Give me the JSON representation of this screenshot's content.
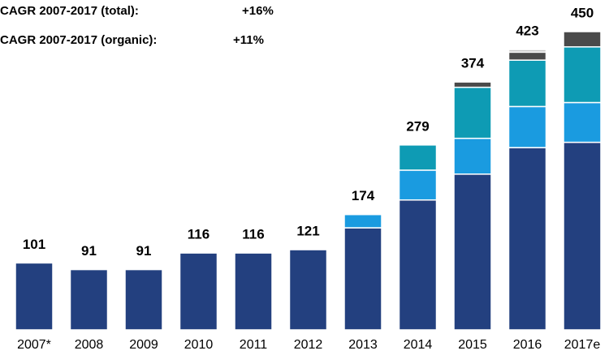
{
  "chart_data": {
    "type": "stacked_bar",
    "annotations": [
      "CAGR 2007-2017 (total):",
      "+16%",
      "CAGR 2007-2017 (organic):",
      "+11%"
    ],
    "categories": [
      "2007*",
      "2008",
      "2009",
      "2010",
      "2011",
      "2012",
      "2013",
      "2014",
      "2015",
      "2016",
      "2017e"
    ],
    "series": [
      {
        "color": "#23407f",
        "values": [
          101,
          91,
          91,
          116,
          116,
          121,
          154,
          196,
          235,
          275,
          283
        ]
      },
      {
        "color": "#1a9be0",
        "values": [
          null,
          null,
          null,
          null,
          null,
          null,
          20,
          45,
          54,
          62,
          60
        ]
      },
      {
        "color": "#0e9bb4",
        "values": [
          null,
          null,
          null,
          null,
          null,
          null,
          null,
          38,
          77,
          70,
          84
        ]
      },
      {
        "color": "#4a4a4a",
        "values": [
          null,
          null,
          null,
          null,
          null,
          null,
          null,
          null,
          8,
          12,
          23
        ]
      },
      {
        "color": "#c8c8c8",
        "values": [
          null,
          null,
          null,
          null,
          null,
          null,
          null,
          null,
          null,
          4,
          null
        ]
      }
    ],
    "totals": [
      101,
      91,
      91,
      116,
      116,
      121,
      174,
      279,
      374,
      423,
      450
    ]
  }
}
